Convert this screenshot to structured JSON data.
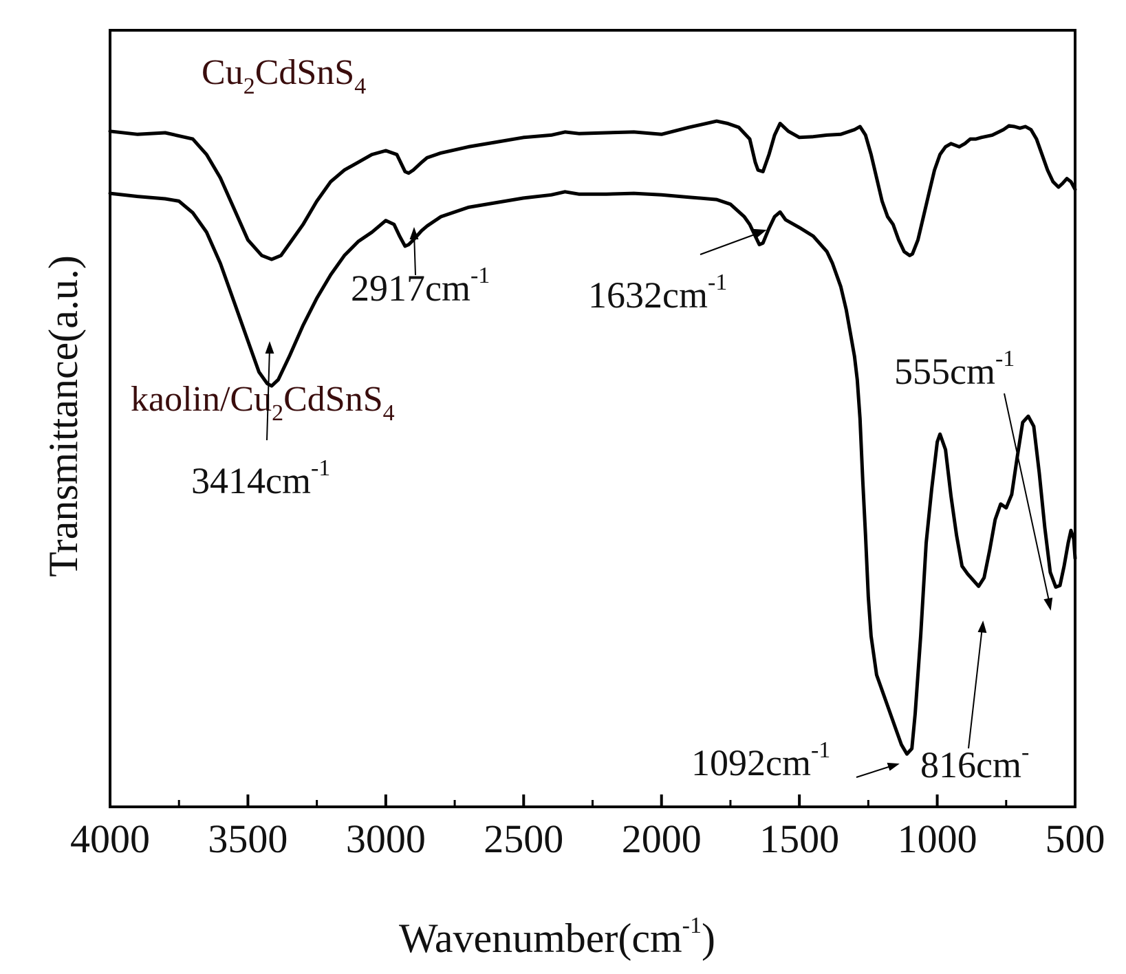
{
  "chart_data": {
    "type": "line",
    "title": "",
    "xlabel": {
      "base": "Wavenumber(cm",
      "sup": "-1",
      "close": ")"
    },
    "ylabel": "Transmittance(a.u.)",
    "xlim": [
      4000,
      500
    ],
    "ylim": [
      0,
      100
    ],
    "x_ticks": [
      4000,
      3500,
      3000,
      2500,
      2000,
      1500,
      1000,
      500
    ],
    "y_ticks_shown": false,
    "series": [
      {
        "name": "Cu2CdSnS4",
        "label": {
          "pre": "Cu",
          "sub1": "2",
          "mid": "CdSnS",
          "sub2": "4"
        },
        "color": "#000000",
        "points": [
          [
            4000,
            87
          ],
          [
            3900,
            86.6
          ],
          [
            3800,
            86.8
          ],
          [
            3700,
            86
          ],
          [
            3650,
            84
          ],
          [
            3600,
            81
          ],
          [
            3550,
            77
          ],
          [
            3500,
            73
          ],
          [
            3450,
            71
          ],
          [
            3414,
            70.5
          ],
          [
            3380,
            71
          ],
          [
            3350,
            72.5
          ],
          [
            3300,
            75
          ],
          [
            3250,
            78
          ],
          [
            3200,
            80.5
          ],
          [
            3150,
            82
          ],
          [
            3100,
            83
          ],
          [
            3050,
            84
          ],
          [
            3000,
            84.5
          ],
          [
            2960,
            84
          ],
          [
            2930,
            81.8
          ],
          [
            2917,
            81.6
          ],
          [
            2900,
            82
          ],
          [
            2870,
            83
          ],
          [
            2850,
            83.6
          ],
          [
            2800,
            84.2
          ],
          [
            2700,
            85
          ],
          [
            2600,
            85.6
          ],
          [
            2500,
            86.2
          ],
          [
            2400,
            86.5
          ],
          [
            2350,
            86.9
          ],
          [
            2300,
            86.7
          ],
          [
            2200,
            86.8
          ],
          [
            2100,
            86.9
          ],
          [
            2000,
            86.6
          ],
          [
            1900,
            87.5
          ],
          [
            1800,
            88.3
          ],
          [
            1760,
            88
          ],
          [
            1720,
            87.5
          ],
          [
            1680,
            86
          ],
          [
            1660,
            83
          ],
          [
            1650,
            82
          ],
          [
            1632,
            81.8
          ],
          [
            1610,
            84
          ],
          [
            1590,
            86.5
          ],
          [
            1570,
            88
          ],
          [
            1540,
            87
          ],
          [
            1500,
            86.2
          ],
          [
            1450,
            86.3
          ],
          [
            1400,
            86.5
          ],
          [
            1350,
            86.6
          ],
          [
            1300,
            87.2
          ],
          [
            1280,
            87.6
          ],
          [
            1260,
            86.5
          ],
          [
            1240,
            84
          ],
          [
            1220,
            81
          ],
          [
            1200,
            78
          ],
          [
            1180,
            76
          ],
          [
            1160,
            75
          ],
          [
            1140,
            73
          ],
          [
            1120,
            71.5
          ],
          [
            1100,
            71
          ],
          [
            1090,
            71.2
          ],
          [
            1070,
            73
          ],
          [
            1050,
            76
          ],
          [
            1030,
            79
          ],
          [
            1010,
            82
          ],
          [
            990,
            84
          ],
          [
            970,
            85
          ],
          [
            950,
            85.4
          ],
          [
            920,
            85
          ],
          [
            900,
            85.4
          ],
          [
            880,
            86
          ],
          [
            860,
            86
          ],
          [
            840,
            86.2
          ],
          [
            800,
            86.5
          ],
          [
            760,
            87.2
          ],
          [
            740,
            87.7
          ],
          [
            720,
            87.6
          ],
          [
            700,
            87.4
          ],
          [
            680,
            87.6
          ],
          [
            660,
            87.2
          ],
          [
            640,
            86
          ],
          [
            620,
            84
          ],
          [
            600,
            82
          ],
          [
            580,
            80.5
          ],
          [
            560,
            79.8
          ],
          [
            545,
            80.3
          ],
          [
            530,
            80.9
          ],
          [
            515,
            80.5
          ],
          [
            500,
            79.5
          ]
        ]
      },
      {
        "name": "kaolin/Cu2CdSnS4",
        "label": {
          "pre": "kaolin/Cu",
          "sub1": "2",
          "mid": "CdSnS",
          "sub2": "4"
        },
        "color": "#000000",
        "points": [
          [
            4000,
            79
          ],
          [
            3900,
            78.6
          ],
          [
            3800,
            78.3
          ],
          [
            3750,
            78
          ],
          [
            3700,
            76.5
          ],
          [
            3650,
            74
          ],
          [
            3600,
            70
          ],
          [
            3550,
            65
          ],
          [
            3500,
            60
          ],
          [
            3460,
            56
          ],
          [
            3430,
            54.5
          ],
          [
            3414,
            54.2
          ],
          [
            3390,
            55
          ],
          [
            3350,
            58
          ],
          [
            3300,
            62
          ],
          [
            3250,
            65.5
          ],
          [
            3200,
            68.5
          ],
          [
            3150,
            71
          ],
          [
            3100,
            72.8
          ],
          [
            3050,
            74
          ],
          [
            3000,
            75.5
          ],
          [
            2970,
            75
          ],
          [
            2950,
            73.5
          ],
          [
            2930,
            72.2
          ],
          [
            2917,
            72.4
          ],
          [
            2900,
            73
          ],
          [
            2870,
            74.2
          ],
          [
            2850,
            74.8
          ],
          [
            2800,
            76
          ],
          [
            2700,
            77.2
          ],
          [
            2600,
            77.8
          ],
          [
            2500,
            78.4
          ],
          [
            2400,
            78.8
          ],
          [
            2350,
            79.2
          ],
          [
            2300,
            78.9
          ],
          [
            2200,
            78.9
          ],
          [
            2100,
            79
          ],
          [
            2000,
            78.8
          ],
          [
            1900,
            78.5
          ],
          [
            1800,
            78.2
          ],
          [
            1750,
            77.6
          ],
          [
            1700,
            76
          ],
          [
            1680,
            75
          ],
          [
            1660,
            73.5
          ],
          [
            1645,
            72.4
          ],
          [
            1632,
            72.6
          ],
          [
            1610,
            74.5
          ],
          [
            1590,
            76
          ],
          [
            1570,
            76.6
          ],
          [
            1550,
            75.6
          ],
          [
            1500,
            74.6
          ],
          [
            1450,
            73.5
          ],
          [
            1400,
            71.5
          ],
          [
            1380,
            70
          ],
          [
            1350,
            67
          ],
          [
            1330,
            64
          ],
          [
            1310,
            60
          ],
          [
            1300,
            58
          ],
          [
            1290,
            55
          ],
          [
            1280,
            50
          ],
          [
            1270,
            42
          ],
          [
            1260,
            35
          ],
          [
            1250,
            27
          ],
          [
            1240,
            22
          ],
          [
            1220,
            17
          ],
          [
            1200,
            15
          ],
          [
            1180,
            13
          ],
          [
            1150,
            10
          ],
          [
            1130,
            8
          ],
          [
            1110,
            6.8
          ],
          [
            1092,
            7.5
          ],
          [
            1080,
            12
          ],
          [
            1060,
            22
          ],
          [
            1040,
            34
          ],
          [
            1020,
            41
          ],
          [
            1000,
            47
          ],
          [
            990,
            48
          ],
          [
            970,
            46
          ],
          [
            950,
            40
          ],
          [
            930,
            35
          ],
          [
            910,
            31
          ],
          [
            890,
            30
          ],
          [
            870,
            29.2
          ],
          [
            850,
            28.4
          ],
          [
            830,
            29.5
          ],
          [
            810,
            33
          ],
          [
            790,
            37
          ],
          [
            770,
            39
          ],
          [
            750,
            38.5
          ],
          [
            730,
            40.2
          ],
          [
            710,
            45
          ],
          [
            690,
            49.5
          ],
          [
            670,
            50.3
          ],
          [
            650,
            49
          ],
          [
            630,
            43
          ],
          [
            610,
            36
          ],
          [
            590,
            30.2
          ],
          [
            570,
            28.3
          ],
          [
            555,
            28.5
          ],
          [
            540,
            31
          ],
          [
            525,
            34
          ],
          [
            515,
            35.6
          ],
          [
            505,
            34.5
          ],
          [
            500,
            32
          ]
        ]
      }
    ],
    "annotations": [
      {
        "text": "2917cm",
        "sup": "-1",
        "x": 2917
      },
      {
        "text": "1632cm",
        "sup": "-1",
        "x": 1632
      },
      {
        "text": "3414cm",
        "sup": "-1",
        "x": 3414
      },
      {
        "text": "555cm",
        "sup": "-1",
        "x": 555
      },
      {
        "text": "1092cm",
        "sup": "-1",
        "x": 1092
      },
      {
        "text": "816cm",
        "sup": "-",
        "x": 816
      }
    ]
  }
}
